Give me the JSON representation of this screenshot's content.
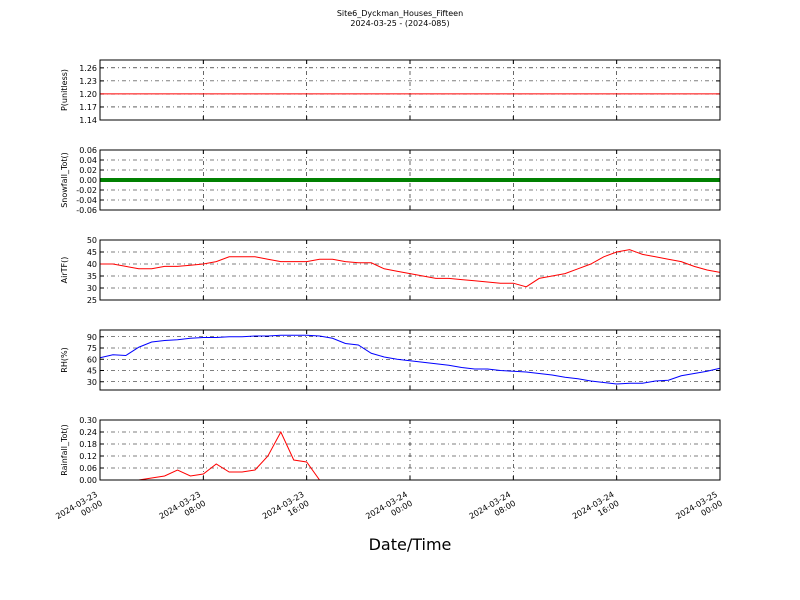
{
  "header": {
    "title": "Site6_Dyckman_Houses_Fifteen",
    "subtitle": "2024-03-25 - (2024-085)"
  },
  "x_axis": {
    "label": "Date/Time",
    "xlim": [
      "2024-03-23 00:00",
      "2024-03-25 00:00"
    ],
    "xticks": [
      {
        "value": "2024-03-23 00:00",
        "label": "2024-03-23\n00:00"
      },
      {
        "value": "2024-03-23 08:00",
        "label": "2024-03-23\n08:00"
      },
      {
        "value": "2024-03-23 16:00",
        "label": "2024-03-23\n16:00"
      },
      {
        "value": "2024-03-24 00:00",
        "label": "2024-03-24\n00:00"
      },
      {
        "value": "2024-03-24 08:00",
        "label": "2024-03-24\n08:00"
      },
      {
        "value": "2024-03-24 16:00",
        "label": "2024-03-24\n16:00"
      },
      {
        "value": "2024-03-25 00:00",
        "label": "2024-03-25\n00:00"
      }
    ],
    "x": [
      "2024-03-23 00:00",
      "2024-03-23 01:00",
      "2024-03-23 02:00",
      "2024-03-23 03:00",
      "2024-03-23 04:00",
      "2024-03-23 05:00",
      "2024-03-23 06:00",
      "2024-03-23 07:00",
      "2024-03-23 08:00",
      "2024-03-23 09:00",
      "2024-03-23 10:00",
      "2024-03-23 11:00",
      "2024-03-23 12:00",
      "2024-03-23 13:00",
      "2024-03-23 14:00",
      "2024-03-23 15:00",
      "2024-03-23 16:00",
      "2024-03-23 17:00",
      "2024-03-23 18:00",
      "2024-03-23 19:00",
      "2024-03-23 20:00",
      "2024-03-23 21:00",
      "2024-03-23 22:00",
      "2024-03-23 23:00",
      "2024-03-24 00:00",
      "2024-03-24 01:00",
      "2024-03-24 02:00",
      "2024-03-24 03:00",
      "2024-03-24 04:00",
      "2024-03-24 05:00",
      "2024-03-24 06:00",
      "2024-03-24 07:00",
      "2024-03-24 08:00",
      "2024-03-24 09:00",
      "2024-03-24 10:00",
      "2024-03-24 11:00",
      "2024-03-24 12:00",
      "2024-03-24 13:00",
      "2024-03-24 14:00",
      "2024-03-24 15:00",
      "2024-03-24 16:00",
      "2024-03-24 17:00",
      "2024-03-24 18:00",
      "2024-03-24 19:00",
      "2024-03-24 20:00",
      "2024-03-24 21:00",
      "2024-03-24 22:00",
      "2024-03-24 23:00",
      "2024-03-25 00:00"
    ]
  },
  "chart_data": [
    {
      "type": "line",
      "ylabel": "P(unitless)",
      "ylim": [
        1.14,
        1.278
      ],
      "grid": true,
      "yticks": [
        1.14,
        1.17,
        {
          "value": 1.2,
          "label": "1.20"
        },
        1.23,
        1.26
      ],
      "series": [
        {
          "color": "#ff0000",
          "width": 1,
          "values": [
            1.2,
            1.2,
            1.2,
            1.2,
            1.2,
            1.2,
            1.2,
            1.2,
            1.2,
            1.2,
            1.2,
            1.2,
            1.2,
            1.2,
            1.2,
            1.2,
            1.2,
            1.2,
            1.2,
            1.2,
            1.2,
            1.2,
            1.2,
            1.2,
            1.2,
            1.2,
            1.2,
            1.2,
            1.2,
            1.2,
            1.2,
            1.2,
            1.2,
            1.2,
            1.2,
            1.2,
            1.2,
            1.2,
            1.2,
            1.2,
            1.2,
            1.2,
            1.2,
            1.2,
            1.2,
            1.2,
            1.2,
            1.2,
            1.2
          ]
        }
      ]
    },
    {
      "type": "line",
      "ylabel": "Snowfall_Tot()",
      "ylim": [
        -0.06,
        0.06
      ],
      "grid": true,
      "yticks": [
        -0.06,
        -0.04,
        -0.02,
        {
          "value": 0,
          "label": "0.00"
        },
        0.02,
        0.04,
        0.06
      ],
      "series": [
        {
          "color": "#008000",
          "width": 4,
          "values": [
            0,
            0,
            0,
            0,
            0,
            0,
            0,
            0,
            0,
            0,
            0,
            0,
            0,
            0,
            0,
            0,
            0,
            0,
            0,
            0,
            0,
            0,
            0,
            0,
            0,
            0,
            0,
            0,
            0,
            0,
            0,
            0,
            0,
            0,
            0,
            0,
            0,
            0,
            0,
            0,
            0,
            0,
            0,
            0,
            0,
            0,
            0,
            0,
            0
          ]
        }
      ]
    },
    {
      "type": "line",
      "ylabel": "AirTF()",
      "ylim": [
        25,
        50
      ],
      "grid": true,
      "yticks": [
        25,
        30,
        35,
        40,
        45,
        50
      ],
      "series": [
        {
          "color": "#ff0000",
          "width": 1,
          "values": [
            40,
            40,
            39,
            38,
            38,
            39,
            39,
            39.5,
            40,
            41,
            43,
            43,
            43,
            42,
            41,
            41,
            41,
            42,
            42,
            41,
            40.5,
            40.5,
            38,
            37,
            36,
            35,
            34,
            34,
            33.5,
            33,
            32.5,
            32,
            32,
            30.5,
            34,
            35,
            36,
            38,
            40,
            43,
            45,
            46,
            44,
            43,
            42,
            41,
            39,
            37.5,
            36.5
          ]
        }
      ]
    },
    {
      "type": "line",
      "ylabel": "RH(%)",
      "ylim": [
        19,
        99
      ],
      "grid": true,
      "yticks": [
        30,
        45,
        60,
        75,
        90
      ],
      "series": [
        {
          "color": "#0000ff",
          "width": 1,
          "values": [
            62,
            66,
            65,
            76,
            83,
            85,
            86,
            88,
            89,
            89,
            90,
            90,
            91,
            91,
            92,
            92,
            92,
            91,
            88,
            81,
            79,
            68,
            63,
            60,
            58,
            56,
            54,
            52,
            49,
            47,
            47,
            45,
            44,
            43,
            41,
            39,
            36,
            34,
            31,
            29,
            27,
            28,
            28,
            31,
            32,
            38,
            41,
            44,
            48
          ]
        }
      ]
    },
    {
      "type": "line",
      "ylabel": "Rainfall_Tot()",
      "ylim": [
        0,
        0.3
      ],
      "grid": true,
      "yticks": [
        {
          "value": 0,
          "label": "0.00"
        },
        0.06,
        0.12,
        0.18,
        0.24,
        {
          "value": 0.3,
          "label": "0.30"
        }
      ],
      "series": [
        {
          "color": "#ff0000",
          "width": 1,
          "values": [
            0,
            0,
            0,
            0,
            0.01,
            0.02,
            0.05,
            0.02,
            0.03,
            0.08,
            0.04,
            0.04,
            0.05,
            0.12,
            0.24,
            0.1,
            0.09,
            0,
            0,
            0,
            0,
            0,
            0,
            0,
            0,
            0,
            0,
            0,
            0,
            0,
            0,
            0,
            0,
            0,
            0,
            0,
            0,
            0,
            0,
            0,
            0,
            0,
            0,
            0,
            0,
            0,
            0,
            0,
            0
          ]
        }
      ]
    }
  ]
}
